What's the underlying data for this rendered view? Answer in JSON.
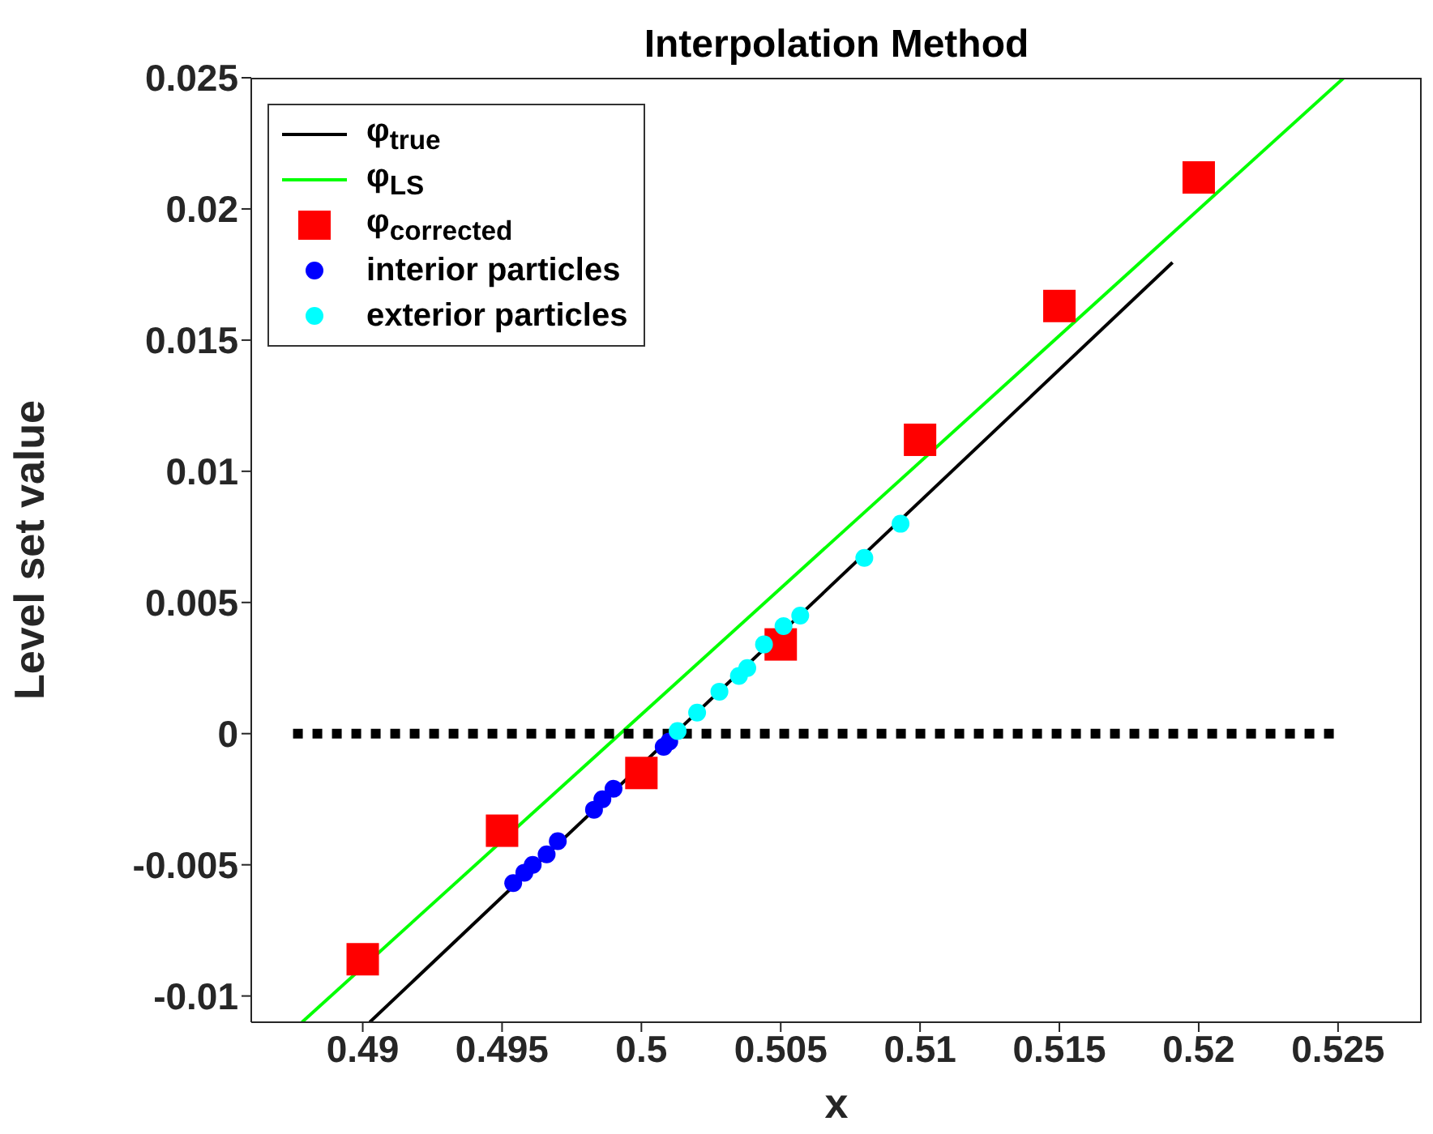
{
  "chart_data": {
    "type": "line",
    "title": "Interpolation Method",
    "xlabel": "x",
    "ylabel": "Level set value",
    "xlim": [
      0.486,
      0.528
    ],
    "xticks": [
      0.49,
      0.495,
      0.5,
      0.505,
      0.51,
      0.515,
      0.52,
      0.525
    ],
    "ylim": [
      -0.011,
      0.025
    ],
    "yticks": [
      -0.01,
      -0.005,
      0,
      0.005,
      0.01,
      0.015,
      0.02,
      0.025
    ],
    "grid": false,
    "legend": "top left",
    "series": [
      {
        "name": "φ$_{true}$",
        "type": "line",
        "color": "#000000",
        "marker": "none",
        "line_style": "solid",
        "x": [
          0.49025,
          0.51906
        ],
        "values": [
          -0.011,
          0.01796
        ]
      },
      {
        "name": "φ$_{LS}$",
        "type": "line",
        "color": "#00ff00",
        "marker": "none",
        "line_style": "solid",
        "x": [
          0.48782,
          0.52521
        ],
        "values": [
          -0.011,
          0.025
        ]
      },
      {
        "type": "line",
        "color": "#000000",
        "marker": "none",
        "line_style": "dotted",
        "x": [
          0.4875,
          0.5249
        ],
        "values": [
          0,
          0
        ]
      },
      {
        "name": "φ$_{corrected}$",
        "type": "scatter",
        "color": "#ff0000",
        "marker": "square",
        "x": [
          0.49,
          0.495,
          0.5,
          0.505,
          0.51,
          0.515,
          0.52
        ],
        "values": [
          -0.0086,
          -0.0037,
          -0.0015,
          0.0034,
          0.0112,
          0.0163,
          0.0212
        ]
      },
      {
        "name": "interior particles",
        "type": "scatter",
        "color": "#0000ff",
        "marker": "circle",
        "x": [
          0.4954,
          0.4958,
          0.4961,
          0.4966,
          0.497,
          0.4983,
          0.4986,
          0.499,
          0.5008,
          0.501
        ],
        "values": [
          -0.0057,
          -0.0053,
          -0.005,
          -0.0046,
          -0.0041,
          -0.0029,
          -0.0025,
          -0.0021,
          -0.0005,
          -0.0003
        ]
      },
      {
        "name": "exterior particles",
        "type": "scatter",
        "color": "#00ffff",
        "marker": "circle",
        "x": [
          0.5013,
          0.502,
          0.5028,
          0.5035,
          0.5038,
          0.5044,
          0.5051,
          0.5057,
          0.508,
          0.5093
        ],
        "values": [
          0.0001,
          0.0008,
          0.0016,
          0.0022,
          0.0025,
          0.0034,
          0.0041,
          0.0045,
          0.0067,
          0.008
        ]
      }
    ]
  }
}
